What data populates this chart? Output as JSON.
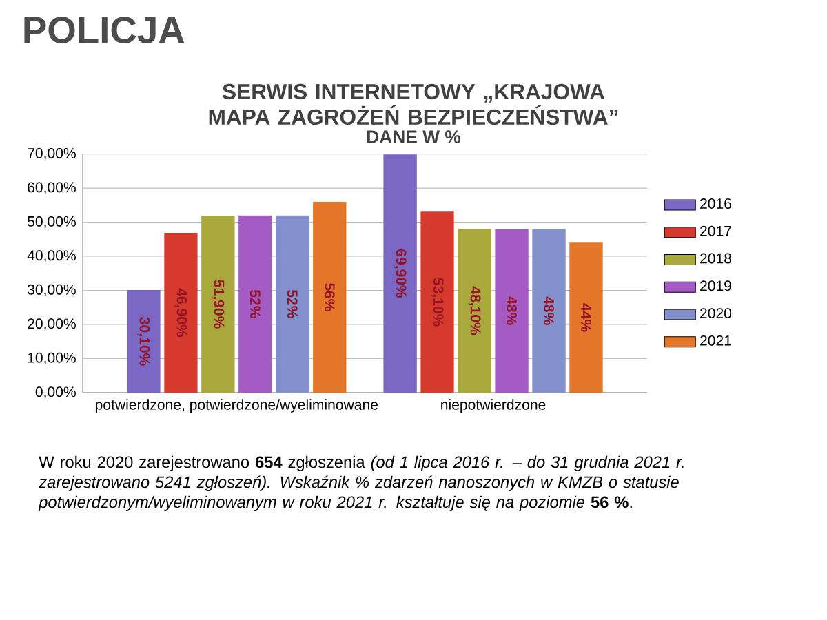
{
  "chart_data": {
    "type": "bar",
    "title": "SERWIS INTERNETOWY „KRAJOWA MAPA ZAGROŻEŃ BEZPIECZEŃSTWA”",
    "subtitle": "DANE W %",
    "categories": [
      "potwierdzone, potwierdzone/wyeliminowane",
      "niepotwierdzone"
    ],
    "series": [
      {
        "name": "2016",
        "color": "#7b68c4",
        "values": [
          30.1,
          69.9
        ],
        "value_labels": [
          "30,10%",
          "69,90%"
        ]
      },
      {
        "name": "2017",
        "color": "#d63a2c",
        "values": [
          46.9,
          53.1
        ],
        "value_labels": [
          "46,90%",
          "53,10%"
        ]
      },
      {
        "name": "2018",
        "color": "#a9a83c",
        "values": [
          51.9,
          48.1
        ],
        "value_labels": [
          "51,90%",
          "48,10%"
        ]
      },
      {
        "name": "2019",
        "color": "#a45cc4",
        "values": [
          52,
          48
        ],
        "value_labels": [
          "52%",
          "48%"
        ]
      },
      {
        "name": "2020",
        "color": "#8290cc",
        "values": [
          52,
          48
        ],
        "value_labels": [
          "52%",
          "48%"
        ]
      },
      {
        "name": "2021",
        "color": "#e4762a",
        "values": [
          56,
          44
        ],
        "value_labels": [
          "56%",
          "44%"
        ]
      }
    ],
    "ylim": [
      0,
      70
    ],
    "yticks": [
      {
        "value": 0,
        "label": "0,00%"
      },
      {
        "value": 10,
        "label": "10,00%"
      },
      {
        "value": 20,
        "label": "20,00%"
      },
      {
        "value": 30,
        "label": "30,00%"
      },
      {
        "value": 40,
        "label": "40,00%"
      },
      {
        "value": 50,
        "label": "50,00%"
      },
      {
        "value": 60,
        "label": "60,00%"
      },
      {
        "value": 70,
        "label": "70,00%"
      }
    ],
    "grid": "y",
    "legend": "right",
    "annotations": [
      "POLICJA",
      "W roku 2020 zarejestrowano **654** zgłoszenia *(od 1 lipca 2016 r. – do 31 grudnia 2021 r. zarejestrowano 5241 zgłoszeń). Wskaźnik % zdarzeń nanoszonych w KMZB o statusie potwierdzonym/wyeliminowanym w roku 2021 r. kształtuje się na poziomie* **56 %**."
    ]
  }
}
